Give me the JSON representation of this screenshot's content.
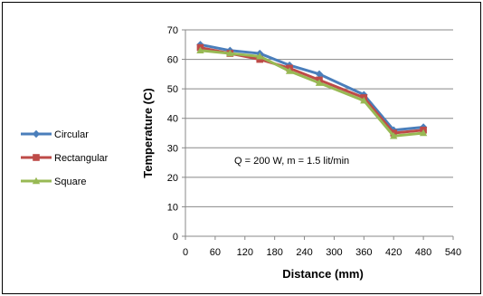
{
  "chart_data": {
    "type": "line",
    "xlabel": "Distance (mm)",
    "ylabel": "Temperature (C)",
    "annotation": "Q = 200 W, m = 1.5 lit/min",
    "xlim": [
      0,
      540
    ],
    "ylim": [
      0,
      70
    ],
    "x_ticks": [
      0,
      60,
      120,
      180,
      240,
      300,
      360,
      420,
      480,
      540
    ],
    "y_ticks": [
      0,
      10,
      20,
      30,
      40,
      50,
      60,
      70
    ],
    "grid": "horizontal",
    "legend_position": "left",
    "x": [
      30,
      90,
      150,
      210,
      270,
      360,
      420,
      480
    ],
    "series": [
      {
        "name": "Circular",
        "color": "#4a7ebb",
        "marker": "diamond",
        "values": [
          65,
          63,
          62,
          58,
          55,
          48,
          36,
          37
        ]
      },
      {
        "name": "Rectangular",
        "color": "#be4b48",
        "marker": "square",
        "values": [
          64,
          62,
          60,
          57,
          53,
          47,
          35,
          36
        ]
      },
      {
        "name": "Square",
        "color": "#98b954",
        "marker": "triangle",
        "values": [
          63,
          62,
          61,
          56,
          52,
          46,
          34,
          35
        ]
      }
    ]
  }
}
